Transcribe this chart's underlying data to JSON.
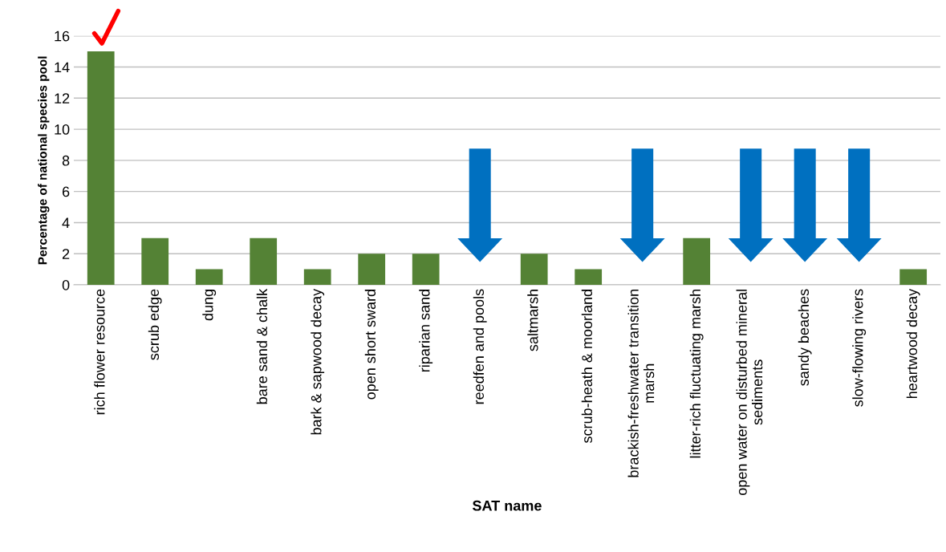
{
  "chart_data": {
    "type": "bar",
    "xlabel": "SAT name",
    "ylabel": "Percentage of national species pool",
    "categories": [
      "rich flower resource",
      "scrub edge",
      "dung",
      "bare sand & chalk",
      "bark & sapwood decay",
      "open short sward",
      "riparian sand",
      "reedfen and pools",
      "saltmarsh",
      "scrub-heath & moorland",
      "brackish-freshwater transition\nmarsh",
      "litter-rich fluctuating marsh",
      "open water on disturbed mineral\nsediments",
      "sandy beaches",
      "slow-flowing rivers",
      "heartwood decay"
    ],
    "values": [
      15,
      3,
      1,
      3,
      1,
      2,
      2,
      0,
      2,
      1,
      0,
      3,
      0,
      0,
      0,
      1
    ],
    "color": "#548235",
    "ylim": [
      0,
      16
    ],
    "yticks": [
      0,
      2,
      4,
      6,
      8,
      10,
      12,
      14,
      16
    ],
    "grid": "y",
    "legend": false
  }
}
